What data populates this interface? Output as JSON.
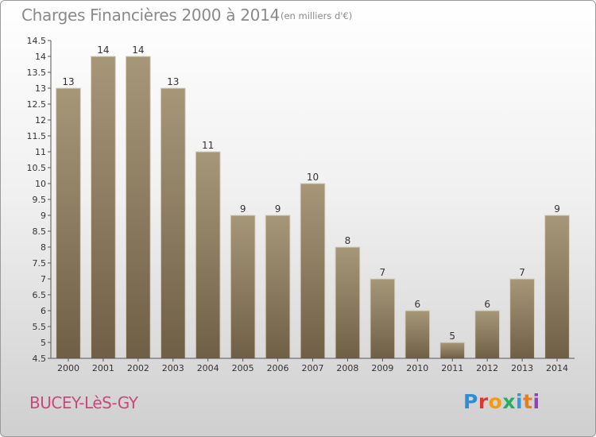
{
  "title": "Charges Financières 2000 à 2014",
  "subtitle": "(en milliers d'€)",
  "location": "BUCEY-LèS-GY",
  "brand": {
    "letters": [
      "P",
      "r",
      "o",
      "x",
      "i",
      "t",
      "i"
    ],
    "colors": [
      "#2a8fd6",
      "#e3342f",
      "#f39c12",
      "#27ae60",
      "#3498db",
      "#e67e22",
      "#8e44ad"
    ]
  },
  "chart_data": {
    "type": "bar",
    "categories": [
      "2000",
      "2001",
      "2002",
      "2003",
      "2004",
      "2005",
      "2006",
      "2007",
      "2008",
      "2009",
      "2010",
      "2011",
      "2012",
      "2013",
      "2014"
    ],
    "values": [
      13,
      14,
      14,
      13,
      11,
      9,
      9,
      10,
      8,
      7,
      6,
      5,
      6,
      7,
      9
    ],
    "data_labels": [
      "13",
      "14",
      "14",
      "13",
      "11",
      "9",
      "9",
      "10",
      "8",
      "7",
      "6",
      "5",
      "6",
      "7",
      "9"
    ],
    "ylim": [
      4.5,
      14.5
    ],
    "yticks": [
      4.5,
      5,
      5.5,
      6,
      6.5,
      7,
      7.5,
      8,
      8.5,
      9,
      9.5,
      10,
      10.5,
      11,
      11.5,
      12,
      12.5,
      13,
      13.5,
      14,
      14.5
    ],
    "ytick_labels": [
      "4.5",
      "5",
      "5.5",
      "6",
      "6.5",
      "7",
      "7.5",
      "8",
      "8.5",
      "9",
      "9.5",
      "10",
      "10.5",
      "11",
      "11.5",
      "12",
      "12.5",
      "13",
      "13.5",
      "14",
      "14.5"
    ],
    "bar_color_top": "#a79779",
    "bar_color_bottom": "#6f5f46",
    "xlabel": "",
    "ylabel": ""
  }
}
